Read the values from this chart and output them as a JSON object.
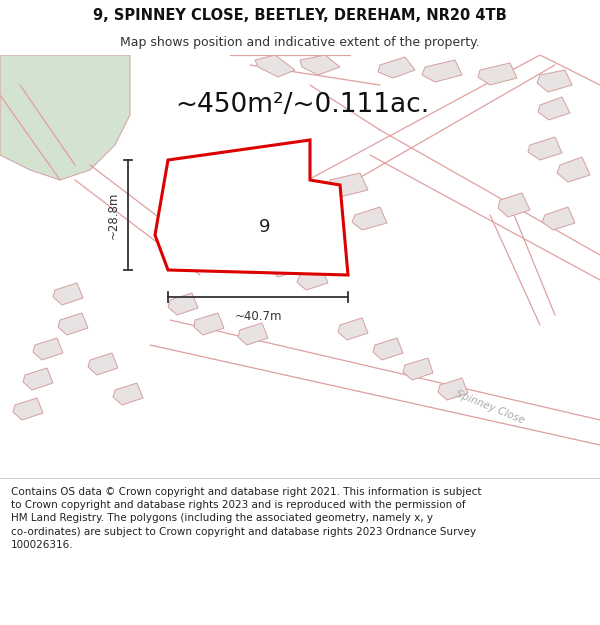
{
  "title": "9, SPINNEY CLOSE, BEETLEY, DEREHAM, NR20 4TB",
  "subtitle": "Map shows position and indicative extent of the property.",
  "area_label": "~450m²/~0.111ac.",
  "width_label": "~40.7m",
  "height_label": "~28.8m",
  "property_number": "9",
  "street_label": "Spinney Close",
  "footer_text": "Contains OS data © Crown copyright and database right 2021. This information is subject\nto Crown copyright and database rights 2023 and is reproduced with the permission of\nHM Land Registry. The polygons (including the associated geometry, namely x, y\nco-ordinates) are subject to Crown copyright and database rights 2023 Ordnance Survey\n100026316.",
  "map_bg": "#faf8f7",
  "green_area_color": "#d4e2d0",
  "property_fill": "#ffffff",
  "property_edge": "#dd0000",
  "building_fill": "#e8e2e2",
  "building_edge": "#d4a0a0",
  "road_color": "#e0a0a0",
  "dim_line_color": "#333333",
  "title_fontsize": 10.5,
  "subtitle_fontsize": 9,
  "area_label_fontsize": 19,
  "street_label_fontsize": 7.5,
  "footer_fontsize": 7.5,
  "title_weight": "bold"
}
